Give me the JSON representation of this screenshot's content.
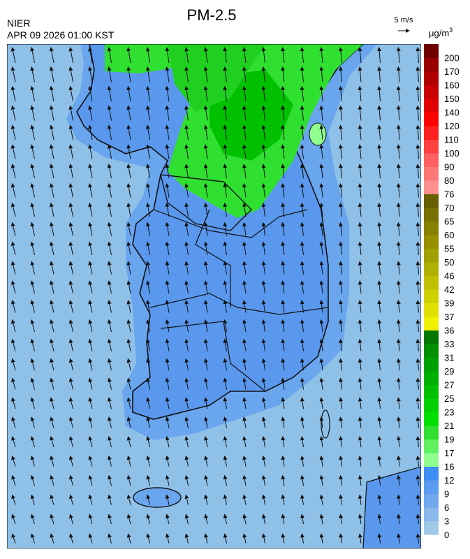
{
  "title": "PM-2.5",
  "agency": "NIER",
  "timestamp": "APR 09 2026 01:00 KST",
  "wind_scale": "5 m/s",
  "unit": "μg/m",
  "unit_exponent": "3",
  "colorbar": {
    "ticks": [
      0,
      3,
      6,
      9,
      12,
      16,
      17,
      19,
      21,
      23,
      25,
      27,
      29,
      31,
      33,
      36,
      37,
      39,
      42,
      46,
      50,
      55,
      60,
      65,
      70,
      76,
      80,
      90,
      100,
      110,
      120,
      140,
      150,
      160,
      170,
      200
    ],
    "colors": [
      "#a0c8e8",
      "#88b8ec",
      "#70a8ee",
      "#5a9cf0",
      "#3d8ef5",
      "#90ff90",
      "#60f060",
      "#30e030",
      "#00e000",
      "#00d000",
      "#00c000",
      "#00b000",
      "#00a000",
      "#009000",
      "#007800",
      "#f0f000",
      "#e0e000",
      "#d0d000",
      "#c0c000",
      "#b0b000",
      "#a0a000",
      "#989000",
      "#888000",
      "#787000",
      "#686000",
      "#ff9090",
      "#ff7878",
      "#ff6060",
      "#ff4040",
      "#ff2020",
      "#ff0000",
      "#e00000",
      "#c80000",
      "#b00000",
      "#980000",
      "#700000"
    ]
  }
}
